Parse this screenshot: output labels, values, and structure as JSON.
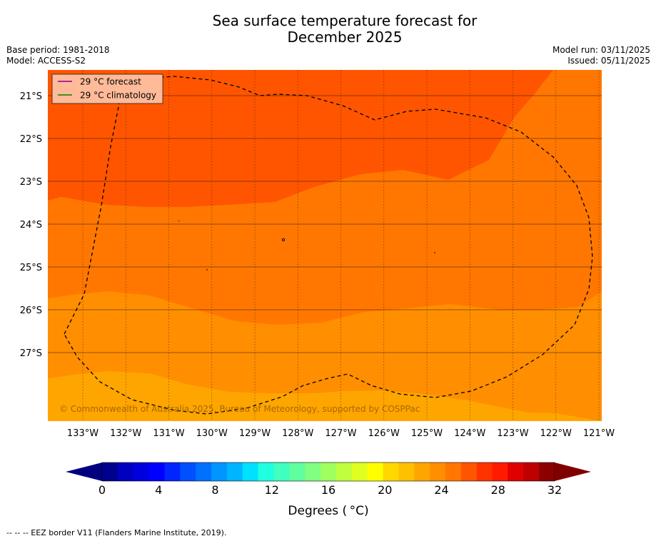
{
  "title": {
    "line1": "Sea surface temperature forecast for",
    "line2": "December 2025"
  },
  "meta": {
    "base_period": "Base period: 1981-2018",
    "model": "Model: ACCESS-S2",
    "model_run": "Model run: 03/11/2025",
    "issued": "Issued: 05/11/2025"
  },
  "legend": {
    "forecast_label": "29 °C  forecast",
    "forecast_color": "#8b008b",
    "climatology_label": "29 °C  climatology",
    "climatology_color": "#008000"
  },
  "copyright": "© Commonwealth of Australia 2025, Bureau of Meteorology, supported by COSPPac",
  "map": {
    "lat_labels": [
      "21°S",
      "22°S",
      "23°S",
      "24°S",
      "25°S",
      "26°S",
      "27°S"
    ],
    "lon_labels": [
      "133°W",
      "132°W",
      "131°W",
      "130°W",
      "129°W",
      "128°W",
      "127°W",
      "126°W",
      "125°W",
      "124°W",
      "123°W",
      "122°W",
      "121°W"
    ],
    "lat_values": [
      -21,
      -22,
      -23,
      -24,
      -25,
      -26,
      -27
    ],
    "lon_values": [
      -133,
      -132,
      -131,
      -130,
      -129,
      -128,
      -127,
      -126,
      -125,
      -124,
      -123,
      -122,
      -121
    ],
    "band_colors": {
      "t28_29": "#ff5500",
      "t27_28": "#ff7700",
      "t26_27": "#ff8e00",
      "t25_26": "#ffa500"
    }
  },
  "colorbar": {
    "ticks": [
      "0",
      "4",
      "8",
      "12",
      "16",
      "20",
      "24",
      "28",
      "32"
    ],
    "label": "Degrees ( °C)",
    "under_color": "#000080",
    "over_color": "#800000",
    "colors": [
      "#00008f",
      "#0000bf",
      "#0000df",
      "#0000ff",
      "#0025ff",
      "#0050ff",
      "#0070ff",
      "#0095ff",
      "#00b5ff",
      "#00e0ff",
      "#20ffdf",
      "#40ffbf",
      "#5fff9f",
      "#80ff80",
      "#9fff5f",
      "#bfff40",
      "#dfff20",
      "#ffff00",
      "#ffd800",
      "#ffc000",
      "#ffa500",
      "#ff8e00",
      "#ff7700",
      "#ff5500",
      "#ff3300",
      "#ff1a00",
      "#e00000",
      "#bf0000",
      "#8b0000"
    ]
  },
  "footnote": "--  --  -- EEZ border V11 (Flanders Marine Institute, 2019)."
}
